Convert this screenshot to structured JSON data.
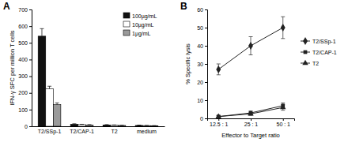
{
  "chart_data": [
    {
      "type": "bar",
      "title": "A",
      "y_label": "IFN-γ SFC per million T cells",
      "categories": [
        "T2/SSp-1",
        "T2/CAP-1",
        "T2",
        "medium"
      ],
      "series": [
        {
          "name": "100µg/mL",
          "color": "#111111",
          "values": [
            540,
            12,
            8,
            5
          ],
          "errors": [
            45,
            3,
            2,
            2
          ]
        },
        {
          "name": "10µg/mL",
          "color": "#ffffff",
          "values": [
            225,
            10,
            6,
            4
          ],
          "errors": [
            15,
            2,
            2,
            1
          ]
        },
        {
          "name": "1µg/mL",
          "color": "#9a9a9a",
          "values": [
            130,
            8,
            5,
            3
          ],
          "errors": [
            10,
            2,
            1,
            1
          ]
        }
      ],
      "ylim": [
        0,
        700
      ],
      "yticks": [
        0,
        100,
        200,
        300,
        400,
        500,
        600,
        700
      ],
      "grid": false,
      "legend": "top-right"
    },
    {
      "type": "line",
      "title": "B",
      "y_label": "% Specific lysis",
      "x_label": "Effector to Target ratio",
      "categories": [
        "12.5 : 1",
        "25 : 1",
        "50 : 1"
      ],
      "series": [
        {
          "name": "T2/SSp-1",
          "color": "#222222",
          "marker": "diamond",
          "values": [
            27,
            40,
            50
          ],
          "errors": [
            3,
            5,
            6
          ]
        },
        {
          "name": "T2/CAP-1",
          "color": "#222222",
          "marker": "square",
          "values": [
            1,
            3,
            7
          ],
          "errors": [
            0.5,
            1,
            1.5
          ]
        },
        {
          "name": "T2",
          "color": "#222222",
          "marker": "triangle",
          "values": [
            1,
            2.5,
            6
          ],
          "errors": [
            0.5,
            0.8,
            1.5
          ]
        }
      ],
      "ylim": [
        0,
        60
      ],
      "yticks": [
        0,
        10,
        20,
        30,
        40,
        50,
        60
      ],
      "grid": false,
      "legend": "right"
    }
  ]
}
